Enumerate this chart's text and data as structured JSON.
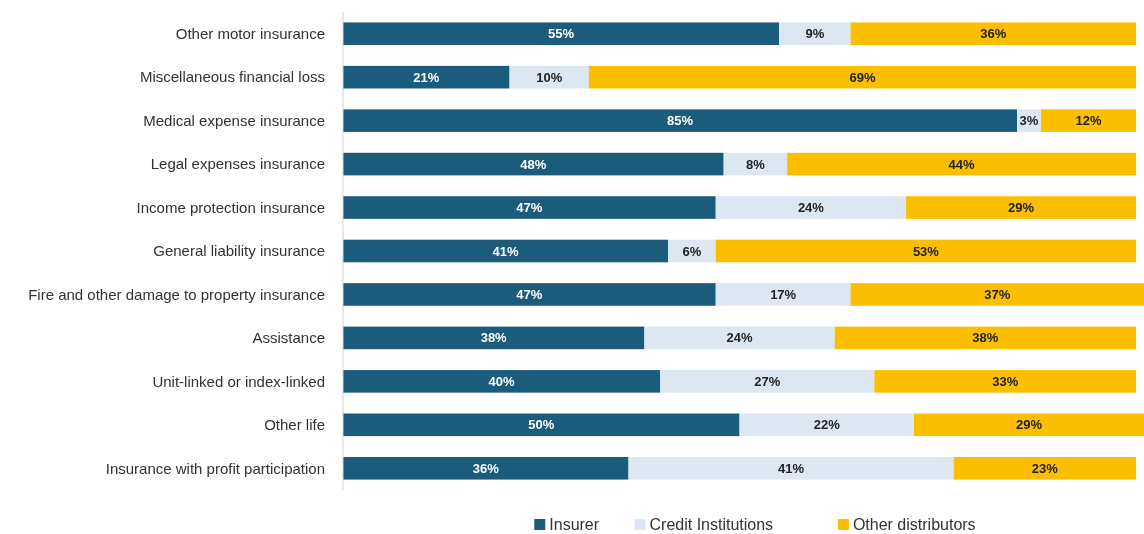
{
  "chart_data": {
    "type": "bar",
    "orientation": "horizontal",
    "stacked": true,
    "legend": "bottom",
    "categories": [
      "Other motor insurance",
      "Miscellaneous financial loss",
      "Medical expense insurance",
      "Legal expenses insurance",
      "Income protection insurance",
      "General liability insurance",
      "Fire and other damage to property insurance",
      "Assistance",
      "Unit-linked or index-linked",
      "Other life",
      "Insurance with profit participation"
    ],
    "series": [
      {
        "name": "Insurer",
        "color": "#1b5c7c",
        "values": [
          55,
          21,
          85,
          48,
          47,
          41,
          47,
          38,
          40,
          50,
          36
        ],
        "value_labels": [
          "55%",
          "21%",
          "85%",
          "48%",
          "47%",
          "41%",
          "47%",
          "38%",
          "40%",
          "50%",
          "36%"
        ]
      },
      {
        "name": "Credit Institutions",
        "color": "#dce7f2",
        "values": [
          9,
          10,
          3,
          8,
          24,
          6,
          17,
          24,
          27,
          22,
          41
        ],
        "value_labels": [
          "9%",
          "10%",
          "3%",
          "8%",
          "24%",
          "6%",
          "17%",
          "24%",
          "27%",
          "22%",
          "41%"
        ]
      },
      {
        "name": "Other distributors",
        "color": "#fbbf00",
        "values": [
          36,
          69,
          12,
          44,
          29,
          53,
          37,
          38,
          33,
          29,
          23
        ],
        "value_labels": [
          "36%",
          "69%",
          "12%",
          "44%",
          "29%",
          "53%",
          "37%",
          "38%",
          "33%",
          "29%",
          "23%"
        ]
      }
    ]
  }
}
